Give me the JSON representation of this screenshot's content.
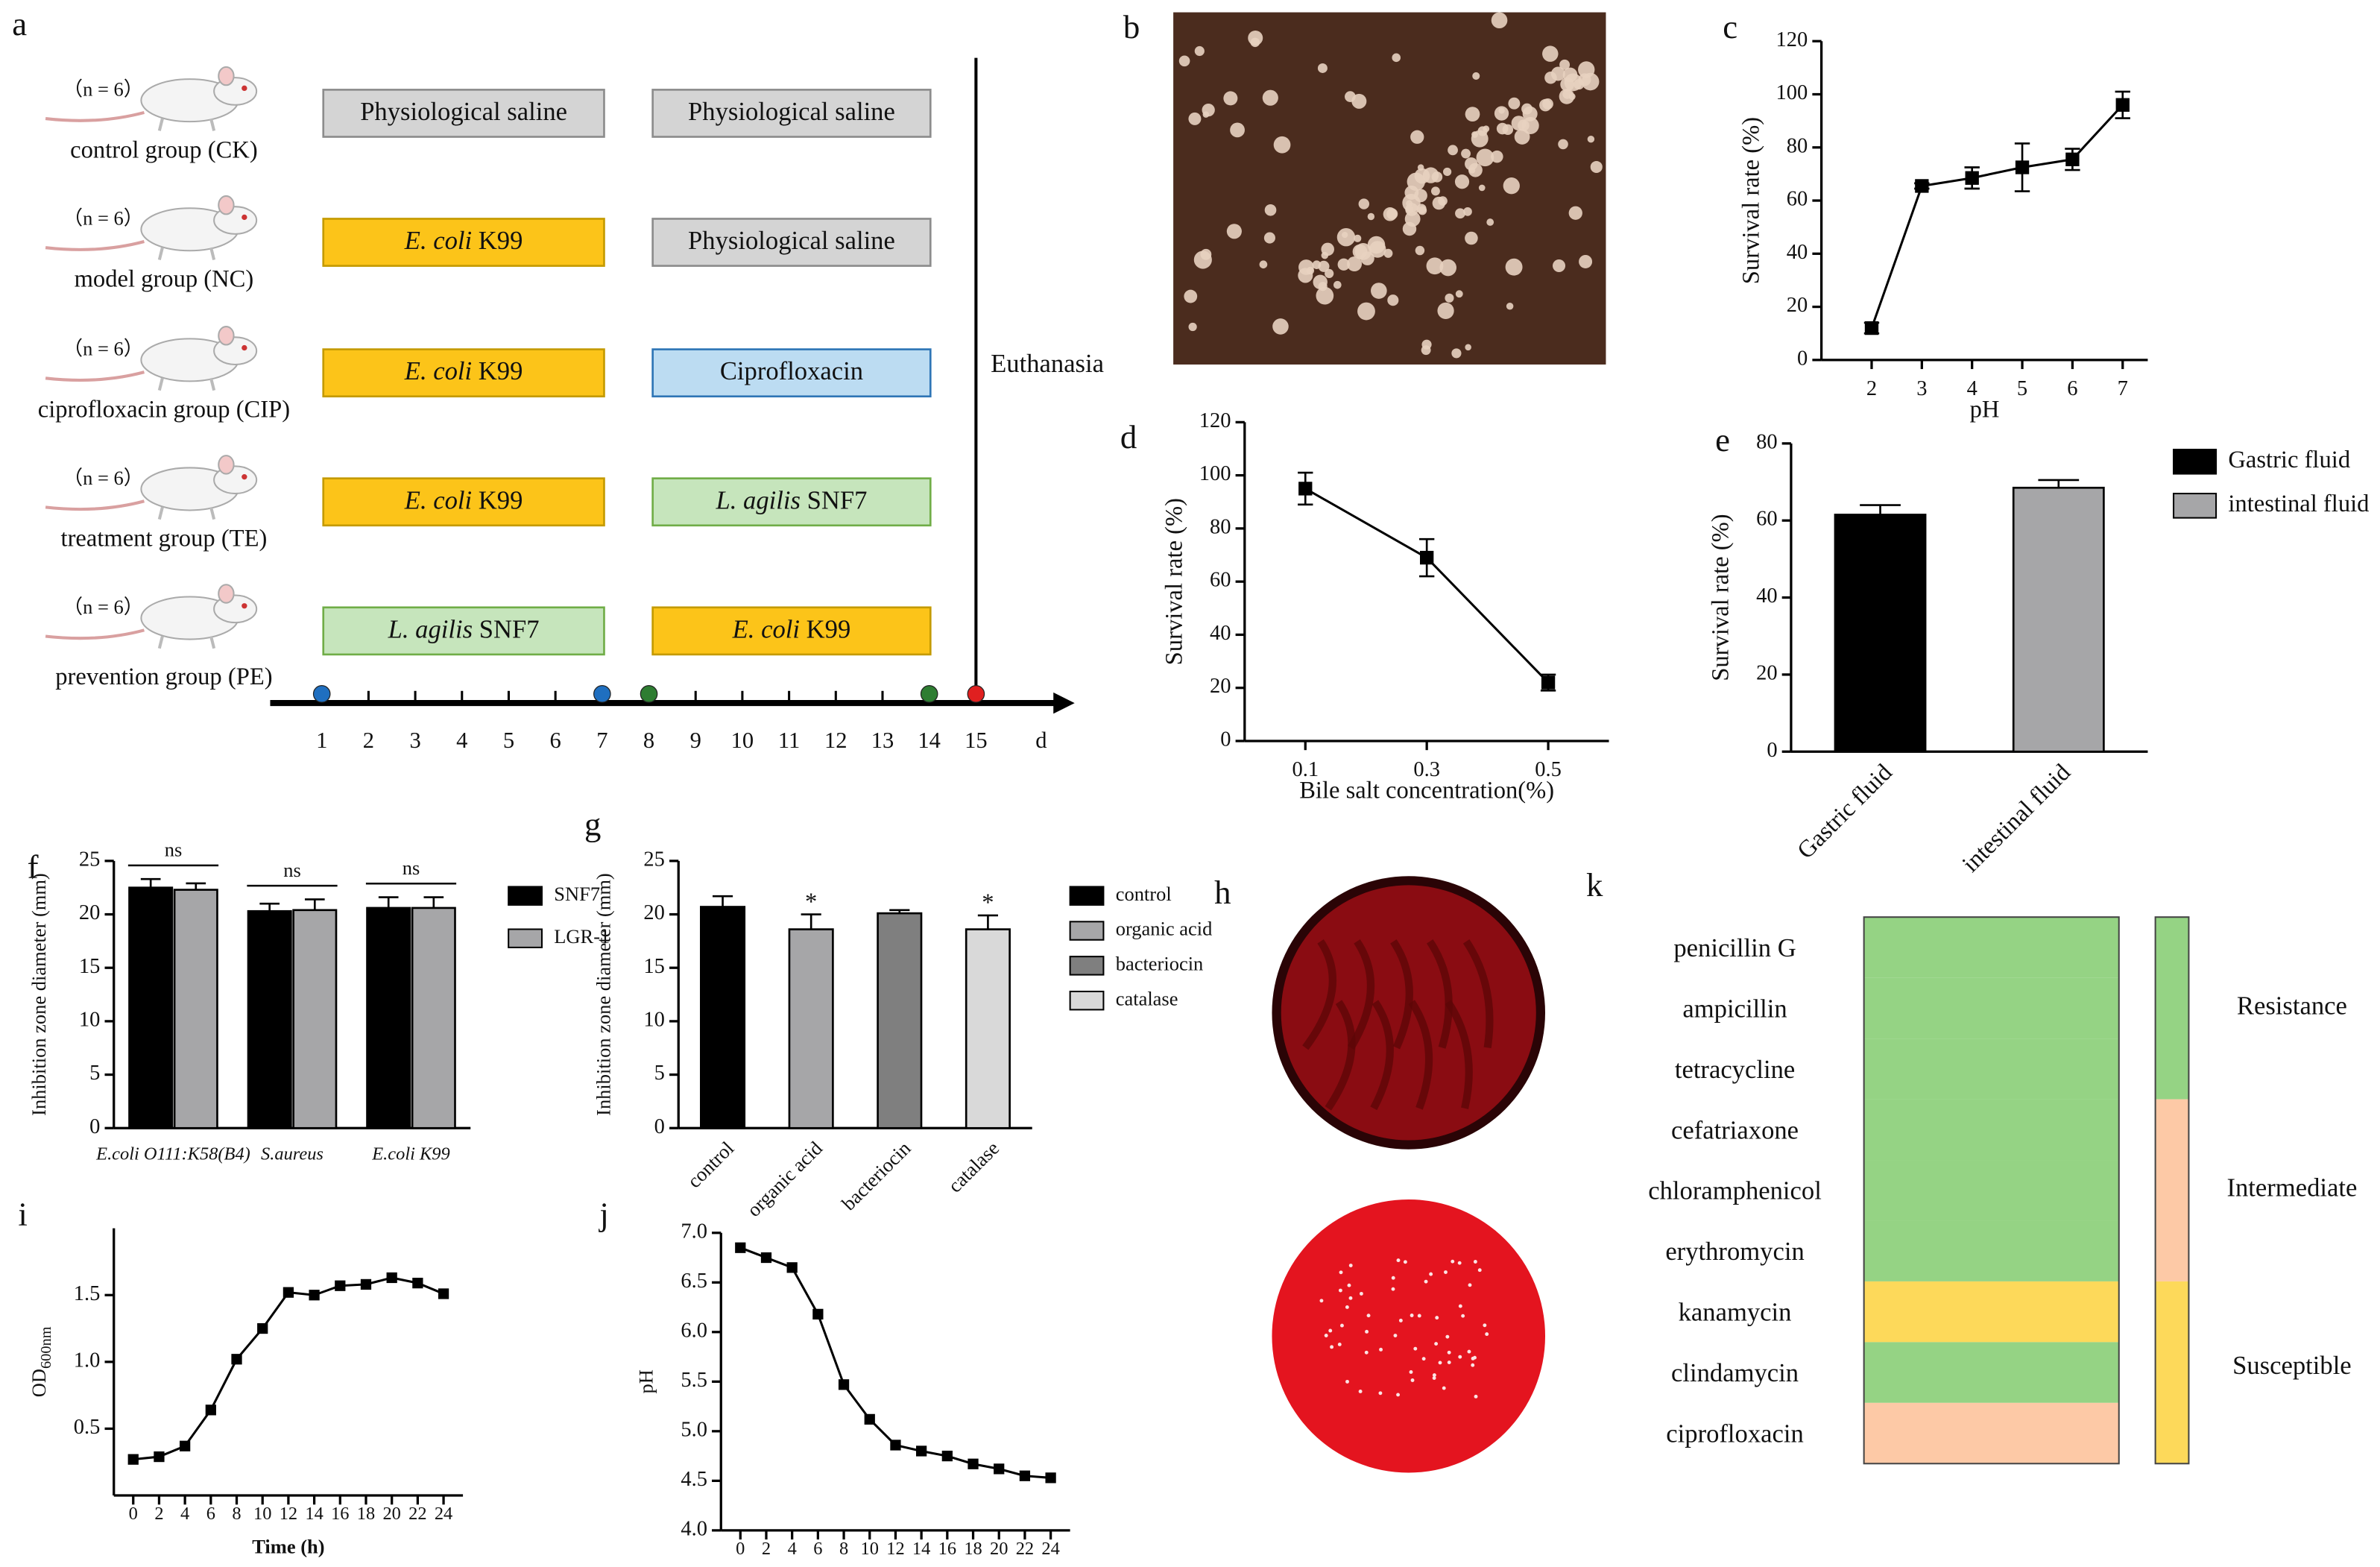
{
  "diagram": {
    "panel": "a",
    "groups": [
      {
        "n": "（n = 6）",
        "label": "control group (CK)",
        "steps": [
          {
            "text": "Physiological saline",
            "fill": "#d4d4d4",
            "border": "#8c8c8c"
          },
          {
            "text": "Physiological saline",
            "fill": "#d4d4d4",
            "border": "#8c8c8c"
          }
        ]
      },
      {
        "n": "（n = 6）",
        "label": "model  group (NC)",
        "steps": [
          {
            "species": "E. coli",
            "strain": "K99",
            "fill": "#fcc419",
            "border": "#c49a00"
          },
          {
            "text": "Physiological saline",
            "fill": "#d4d4d4",
            "border": "#8c8c8c"
          }
        ]
      },
      {
        "n": "（n = 6）",
        "label": "ciprofloxacin group (CIP)",
        "steps": [
          {
            "species": "E. coli",
            "strain": "K99",
            "fill": "#fcc419",
            "border": "#c49a00"
          },
          {
            "text": "Ciprofloxacin",
            "fill": "#bcdcf2",
            "border": "#2e75b6"
          }
        ]
      },
      {
        "n": "（n = 6）",
        "label": "treatment group (TE)",
        "steps": [
          {
            "species": "E. coli",
            "strain": "K99",
            "fill": "#fcc419",
            "border": "#c49a00"
          },
          {
            "species": "L. agilis",
            "strain": "SNF7",
            "fill": "#c6e5bc",
            "border": "#70ad47"
          }
        ]
      },
      {
        "n": "（n = 6）",
        "label": "prevention group (PE)",
        "steps": [
          {
            "species": "L. agilis",
            "strain": "SNF7",
            "fill": "#c6e5bc",
            "border": "#70ad47"
          },
          {
            "species": "E. coli",
            "strain": "K99",
            "fill": "#fcc419",
            "border": "#c49a00"
          }
        ]
      }
    ],
    "end_label": "Euthanasia",
    "timeline": {
      "days": [
        1,
        2,
        3,
        4,
        5,
        6,
        7,
        8,
        9,
        10,
        11,
        12,
        13,
        14,
        15
      ],
      "unit": "d",
      "dots": [
        {
          "day": 1,
          "color": "#1f6fc0"
        },
        {
          "day": 7,
          "color": "#1f6fc0"
        },
        {
          "day": 8,
          "color": "#2e7d32"
        },
        {
          "day": 14,
          "color": "#2e7d32"
        },
        {
          "day": 15,
          "color": "#e02020"
        }
      ]
    }
  },
  "photos": [
    {
      "panel": "b"
    },
    {
      "panel": "h"
    }
  ],
  "chart_data": [
    {
      "panel": "c",
      "type": "line",
      "xlabel": "pH",
      "ylabel": "Survival rate (%)",
      "x": [
        2,
        3,
        4,
        5,
        6,
        7
      ],
      "values": [
        12,
        65.5,
        68.5,
        72.5,
        75.5,
        96
      ],
      "errors": [
        2,
        1,
        4,
        9,
        4,
        5
      ],
      "color": "#000",
      "xlim": [
        1,
        7.5
      ],
      "xticks": [
        2,
        3,
        4,
        5,
        6,
        7
      ],
      "ylim": [
        0,
        120
      ],
      "yticks": [
        0,
        20,
        40,
        60,
        80,
        100,
        120
      ]
    },
    {
      "panel": "d",
      "type": "line",
      "xlabel": "Bile salt concentration(%)",
      "ylabel": "Survival rate (%)",
      "x": [
        0.1,
        0.3,
        0.5
      ],
      "values": [
        95,
        69,
        22
      ],
      "errors": [
        6,
        7,
        3
      ],
      "color": "#000",
      "xlim": [
        0,
        0.6
      ],
      "xticks": [
        0.1,
        0.3,
        0.5
      ],
      "ylim": [
        0,
        120
      ],
      "yticks": [
        0,
        20,
        40,
        60,
        80,
        100,
        120
      ]
    },
    {
      "panel": "e",
      "type": "bar",
      "ylabel": "Survival rate (%)",
      "categories": [
        "Gastric fluid",
        "intestinal fluid"
      ],
      "values": [
        61.5,
        68.5
      ],
      "errors": [
        2.5,
        2
      ],
      "colors": [
        "#000000",
        "#a6a6a8"
      ],
      "ylim": [
        0,
        80
      ],
      "yticks": [
        0,
        20,
        40,
        60,
        80
      ]
    },
    {
      "panel": "f",
      "type": "bar",
      "ylabel": "Inhibition zone diameter (mm)",
      "categories": [
        "E.coli O111:K58(B4)",
        "S.aureus",
        "E.coli K99"
      ],
      "series": [
        {
          "name": "SNF7",
          "color": "#000000",
          "values": [
            22.5,
            20.3,
            20.6
          ],
          "errors": [
            0.8,
            0.7,
            1
          ]
        },
        {
          "name": "LGR-1",
          "color": "#a6a6a8",
          "values": [
            22.3,
            20.4,
            20.6
          ],
          "errors": [
            0.6,
            1,
            1
          ]
        }
      ],
      "annotations": [
        "ns",
        "ns",
        "ns"
      ],
      "ylim": [
        0,
        25
      ],
      "yticks": [
        0,
        5,
        10,
        15,
        20,
        25
      ]
    },
    {
      "panel": "g",
      "type": "bar",
      "ylabel": "Inhibition zone diameter (mm)",
      "categories": [
        "control",
        "organic acid",
        "bacteriocin",
        "catalase"
      ],
      "values": [
        20.7,
        18.6,
        20.1,
        18.6
      ],
      "errors": [
        1,
        1.4,
        0.3,
        1.3
      ],
      "colors": [
        "#000000",
        "#a6a6a8",
        "#7f7f7f",
        "#d9d9d9"
      ],
      "annotations": [
        null,
        "*",
        null,
        "*"
      ],
      "ylim": [
        0,
        25
      ],
      "yticks": [
        0,
        5,
        10,
        15,
        20,
        25
      ]
    },
    {
      "panel": "i",
      "type": "line",
      "xlabel": "Time (h)",
      "ylabel": {
        "main": "OD",
        "sub": "600nm"
      },
      "x": [
        0,
        2,
        4,
        6,
        8,
        10,
        12,
        14,
        16,
        18,
        20,
        22,
        24
      ],
      "values": [
        0.27,
        0.29,
        0.37,
        0.64,
        1.02,
        1.25,
        1.52,
        1.5,
        1.57,
        1.58,
        1.63,
        1.59,
        1.51
      ],
      "color": "#000",
      "xlim": [
        -1.5,
        25.5
      ],
      "xticks": [
        0,
        2,
        4,
        6,
        8,
        10,
        12,
        14,
        16,
        18,
        20,
        22,
        24
      ],
      "ylim": [
        0,
        2
      ],
      "yticks": [
        0.5,
        {
          "value": 1,
          "label": "1.0"
        },
        1.5
      ]
    },
    {
      "panel": "j",
      "type": "line",
      "xlabel": "Time (h)",
      "ylabel": "pH",
      "x": [
        0,
        2,
        4,
        6,
        8,
        10,
        12,
        14,
        16,
        18,
        20,
        22,
        24
      ],
      "values": [
        6.85,
        6.75,
        6.65,
        6.18,
        5.47,
        5.12,
        4.86,
        4.8,
        4.75,
        4.67,
        4.62,
        4.55,
        4.53
      ],
      "color": "#000",
      "xlim": [
        -1.5,
        25.5
      ],
      "xticks": [
        0,
        2,
        4,
        6,
        8,
        10,
        12,
        14,
        16,
        18,
        20,
        22,
        24
      ],
      "ylim": [
        4,
        7
      ],
      "yticks": [
        {
          "value": 4,
          "label": "4.0"
        },
        4.5,
        {
          "value": 5,
          "label": "5.0"
        },
        5.5,
        {
          "value": 6,
          "label": "6.0"
        },
        6.5,
        {
          "value": 7,
          "label": "7.0"
        }
      ]
    }
  ],
  "resistance": {
    "panel": "k",
    "rows": [
      {
        "drug": "penicillin G",
        "class": "Resistance"
      },
      {
        "drug": "ampicillin",
        "class": "Resistance"
      },
      {
        "drug": "tetracycline",
        "class": "Resistance"
      },
      {
        "drug": "cefatriaxone",
        "class": "Resistance"
      },
      {
        "drug": "chloramphenicol",
        "class": "Resistance"
      },
      {
        "drug": "erythromycin",
        "class": "Resistance"
      },
      {
        "drug": "kanamycin",
        "class": "Susceptible"
      },
      {
        "drug": "clindamycin",
        "class": "Resistance"
      },
      {
        "drug": "ciprofloxacin",
        "class": "Intermediate"
      }
    ],
    "legend": [
      {
        "label": "Resistance",
        "color": "#95d384"
      },
      {
        "label": "Intermediate",
        "color": "#fdc9a6"
      },
      {
        "label": "Susceptible",
        "color": "#fdd95a"
      }
    ]
  }
}
